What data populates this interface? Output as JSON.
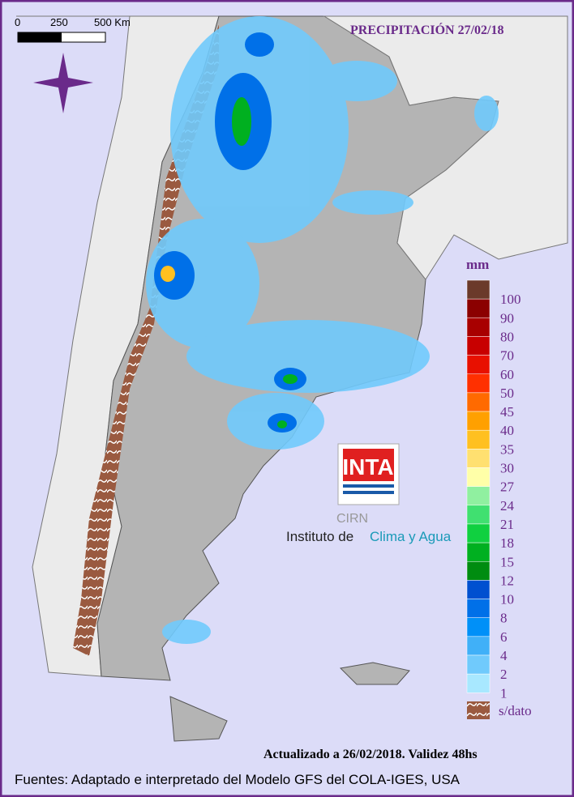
{
  "header": {
    "title": "PRECIPITACIÓN 27/02/18"
  },
  "scale": {
    "labels": [
      "0",
      "250",
      "500 Km"
    ]
  },
  "legend": {
    "unit": "mm",
    "items": [
      {
        "label": "100",
        "color": "#6b3a2a"
      },
      {
        "label": "90",
        "color": "#8b0000"
      },
      {
        "label": "80",
        "color": "#a80000"
      },
      {
        "label": "70",
        "color": "#c80000"
      },
      {
        "label": "60",
        "color": "#e81000"
      },
      {
        "label": "50",
        "color": "#ff3000"
      },
      {
        "label": "45",
        "color": "#ff6a00"
      },
      {
        "label": "40",
        "color": "#ffa000"
      },
      {
        "label": "35",
        "color": "#ffc020"
      },
      {
        "label": "30",
        "color": "#ffe070"
      },
      {
        "label": "27",
        "color": "#ffffa8"
      },
      {
        "label": "24",
        "color": "#90f0a0"
      },
      {
        "label": "21",
        "color": "#40e070"
      },
      {
        "label": "18",
        "color": "#10d040"
      },
      {
        "label": "15",
        "color": "#00b020"
      },
      {
        "label": "12",
        "color": "#008c10"
      },
      {
        "label": "10",
        "color": "#0050d0"
      },
      {
        "label": "8",
        "color": "#0070e8"
      },
      {
        "label": "6",
        "color": "#0090f8"
      },
      {
        "label": "4",
        "color": "#40b0f8"
      },
      {
        "label": "2",
        "color": "#70cafc"
      },
      {
        "label": "1",
        "color": "#a8e8ff"
      }
    ],
    "no_data": "s/dato"
  },
  "logo": {
    "inta": "INTA",
    "cirn": "CIRN",
    "institute": "Instituto de",
    "institute_highlight": "Clima y Agua"
  },
  "footer": {
    "updated": "Actualizado a 26/02/2018. Validez 48hs",
    "sources": "Fuentes: Adaptado e interpretado del Modelo GFS del COLA-IGES, USA"
  }
}
